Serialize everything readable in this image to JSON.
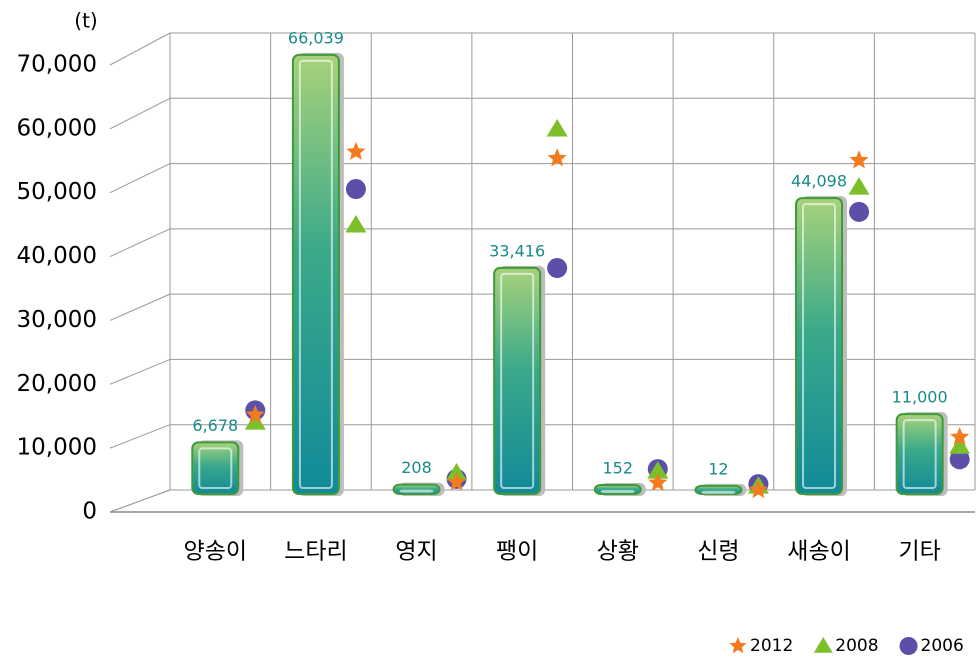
{
  "chart_data": {
    "type": "bar",
    "y_axis_label": "(t)",
    "categories": [
      "양송이",
      "느타리",
      "영지",
      "팽이",
      "상황",
      "신령",
      "새송이",
      "기타"
    ],
    "values": [
      6678,
      66039,
      208,
      33416,
      152,
      12,
      44098,
      11000
    ],
    "value_labels": [
      "6,678",
      "66,039",
      "208",
      "33,416",
      "152",
      "12",
      "44,098",
      "11,000"
    ],
    "series": [
      {
        "name": "2012",
        "color": "#f47a20",
        "marker": "star",
        "values": [
          11500,
          51800,
          1200,
          50800,
          1100,
          0,
          50500,
          8100
        ]
      },
      {
        "name": "2008",
        "color": "#7cbf2a",
        "marker": "triangle",
        "values": [
          10400,
          40600,
          2600,
          55300,
          2900,
          600,
          46400,
          6700
        ]
      },
      {
        "name": "2006",
        "color": "#5b4fa8",
        "marker": "circle",
        "values": [
          12200,
          46100,
          1700,
          34000,
          3200,
          900,
          42600,
          4700
        ]
      }
    ],
    "ylim": [
      0,
      70000
    ],
    "yticks": [
      0,
      {
        "value": 10000,
        "label": "10,000"
      },
      {
        "value": 20000,
        "label": "20,000"
      },
      {
        "value": 30000,
        "label": "30,000"
      },
      {
        "value": 40000,
        "label": "40,000"
      },
      {
        "value": 50000,
        "label": "50,000"
      },
      {
        "value": 60000,
        "label": "60,000"
      },
      {
        "value": 70000,
        "label": "70,000"
      }
    ],
    "grid": true,
    "legend": "bottom-right"
  }
}
